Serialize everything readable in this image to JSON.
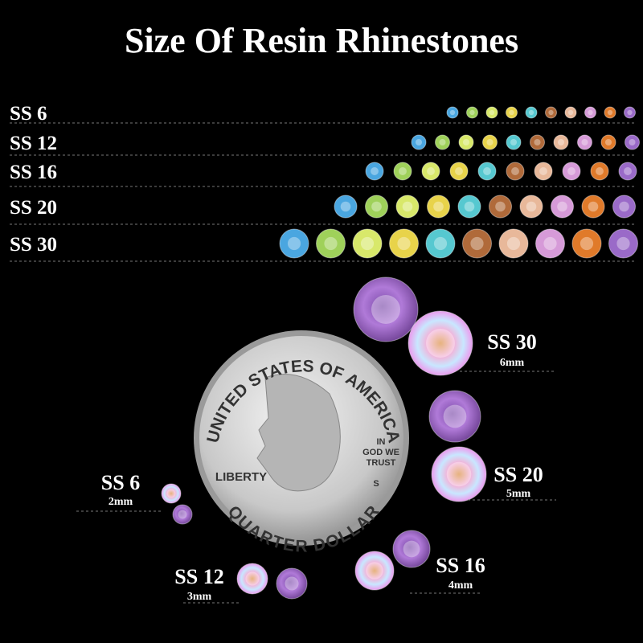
{
  "title": "Size Of Resin Rhinestones",
  "rows": [
    {
      "label": "SS 6"
    },
    {
      "label": "SS 12"
    },
    {
      "label": "SS 16"
    },
    {
      "label": "SS 20"
    },
    {
      "label": "SS 30"
    }
  ],
  "samples": [
    {
      "label": "SS 30",
      "size": "6mm"
    },
    {
      "label": "SS 20",
      "size": "5mm"
    },
    {
      "label": "SS 16",
      "size": "4mm"
    },
    {
      "label": "SS 12",
      "size": "3mm"
    },
    {
      "label": "SS 6",
      "size": "2mm"
    }
  ],
  "coin": {
    "top": "UNITED STATES OF AMERICA",
    "motto": [
      "IN",
      "GOD WE",
      "TRUST"
    ],
    "left": "LIBERTY",
    "mint": "S",
    "bottom": "QUARTER DOLLAR"
  }
}
